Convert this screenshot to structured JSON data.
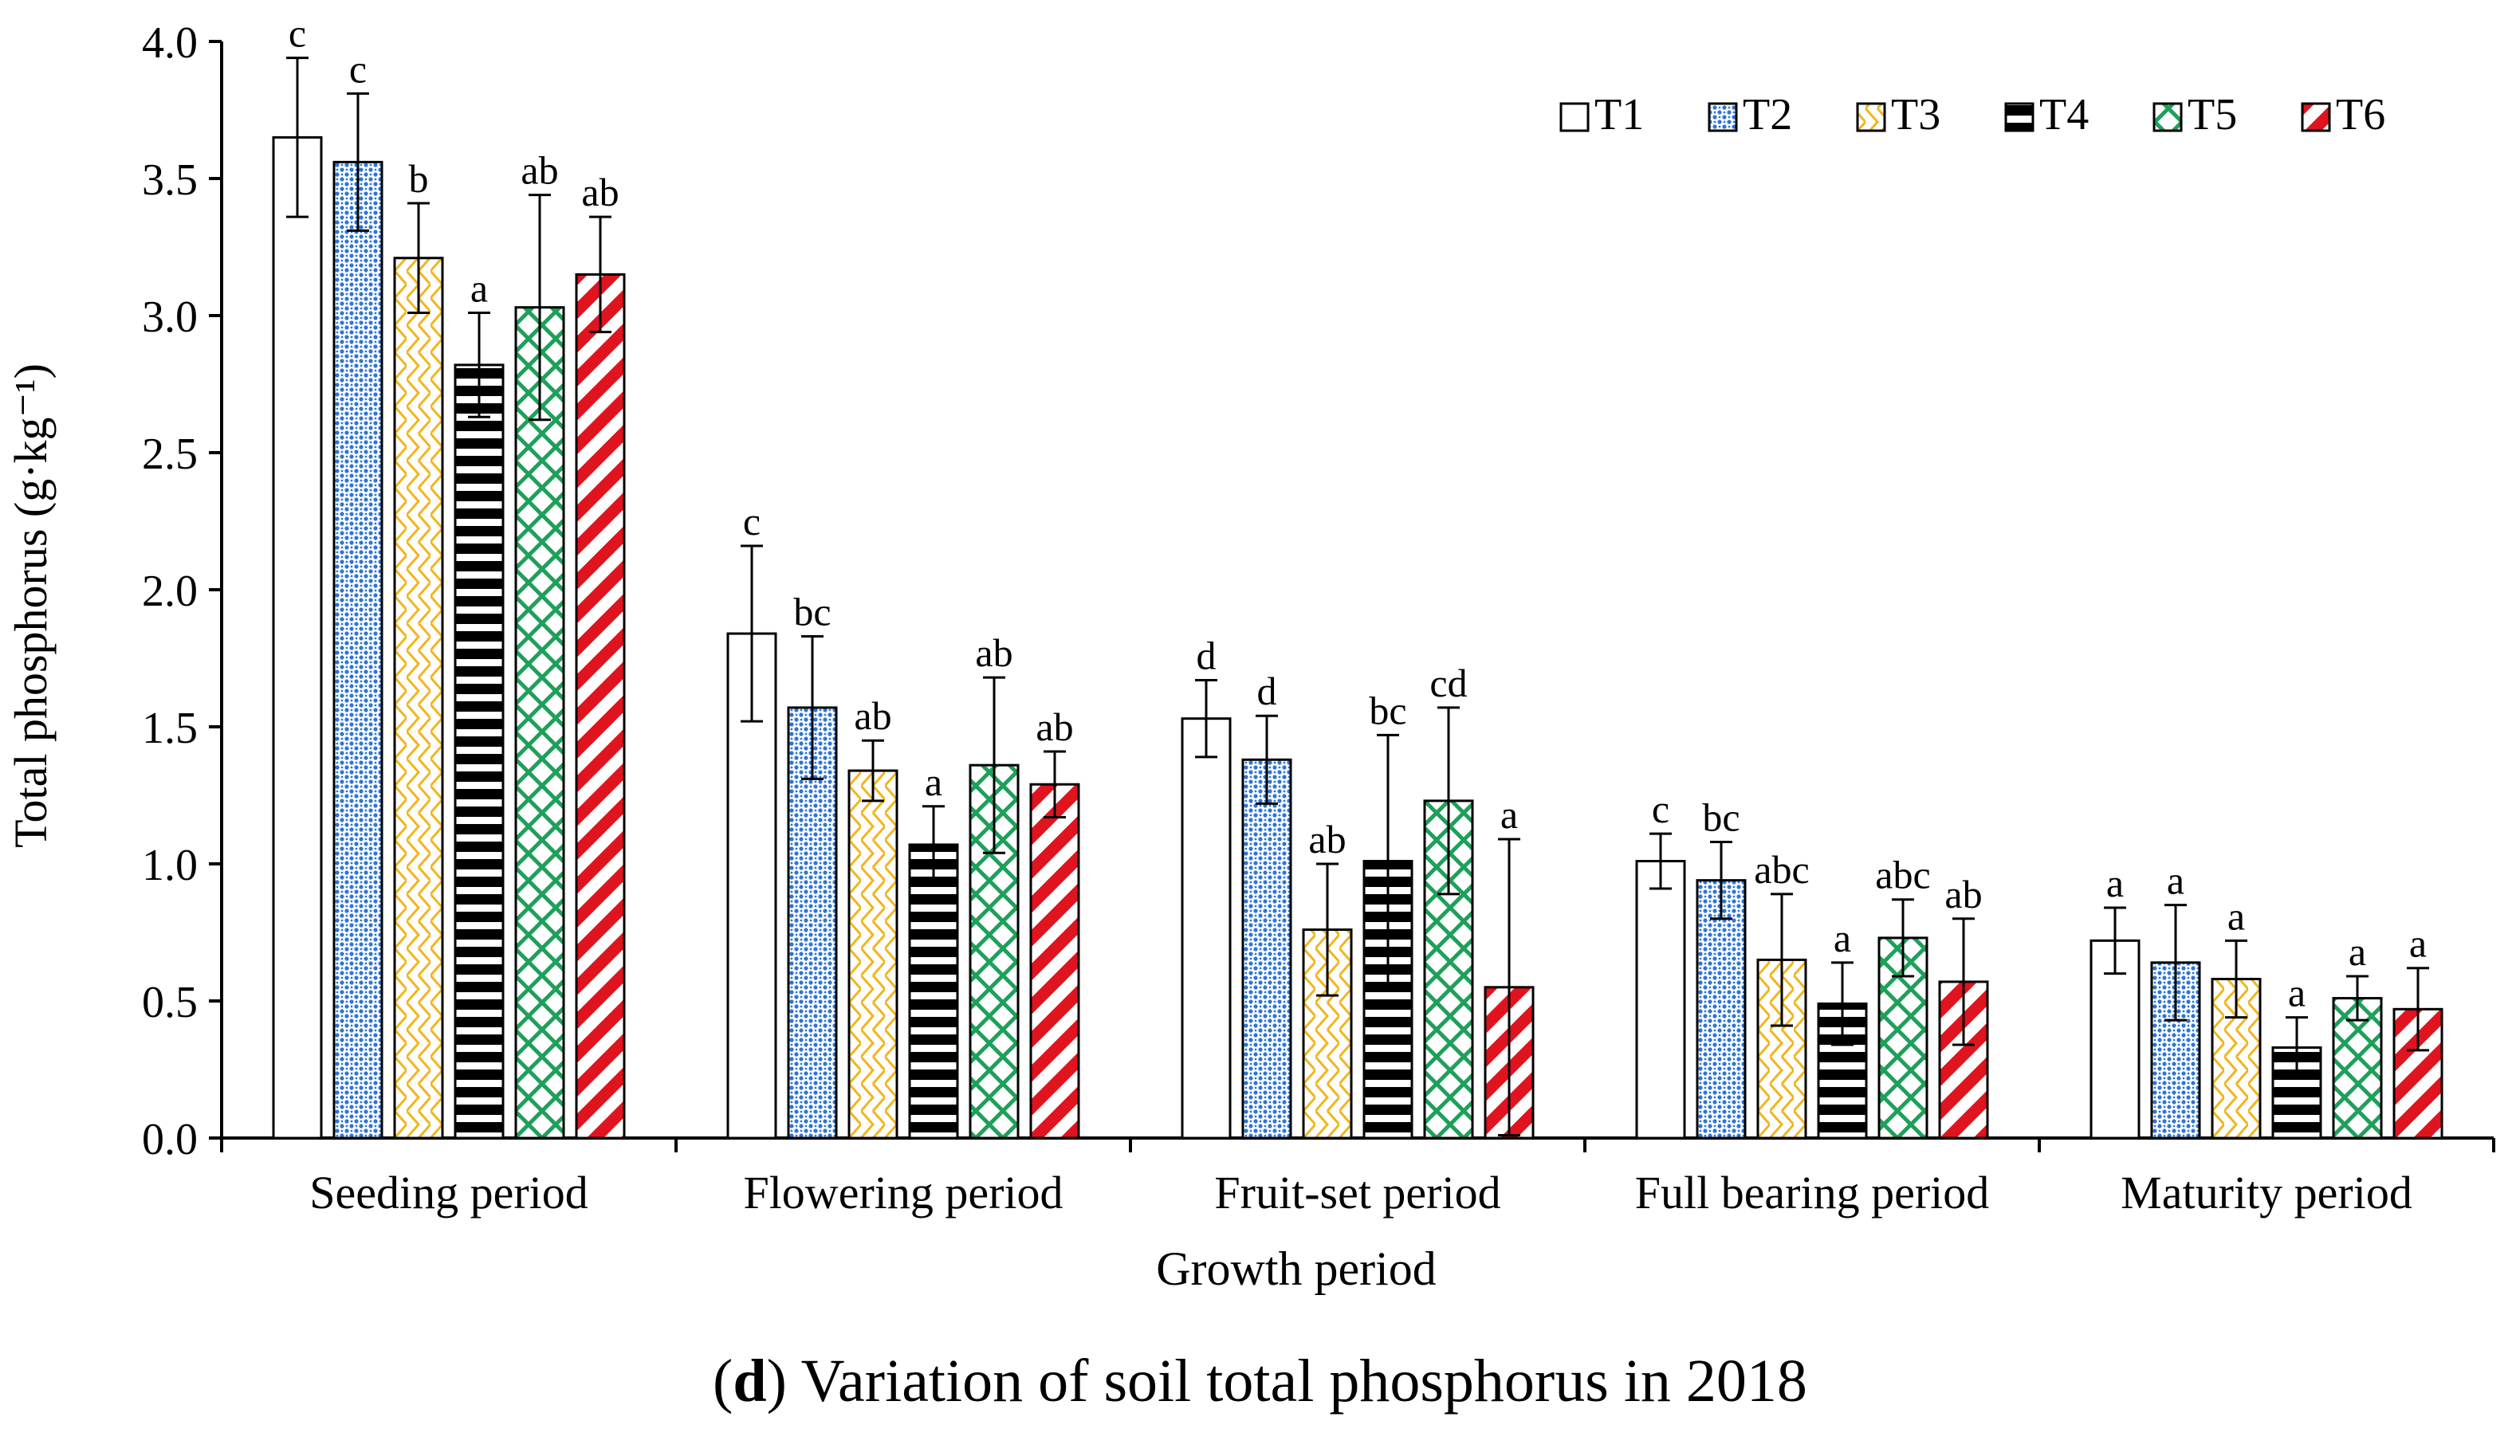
{
  "chart_data": {
    "type": "bar",
    "title": "",
    "xlabel": "Growth period",
    "ylabel": "Total phosphorus (g·kg⁻¹)",
    "ylim": [
      0,
      4.0
    ],
    "y_ticks": [
      "0.0",
      "0.5",
      "1.0",
      "1.5",
      "2.0",
      "2.5",
      "3.0",
      "3.5",
      "4.0"
    ],
    "categories": [
      "Seeding period",
      "Flowering period",
      "Fruit-set period",
      "Full bearing period",
      "Maturity period"
    ],
    "legend_position": "top-right",
    "series": [
      {
        "name": "T1",
        "color": "#ffffff",
        "pattern": "none",
        "values": [
          3.65,
          1.84,
          1.53,
          1.01,
          0.72
        ],
        "errors": [
          0.29,
          0.32,
          0.14,
          0.1,
          0.12
        ],
        "letters": [
          "c",
          "c",
          "d",
          "c",
          "a"
        ]
      },
      {
        "name": "T2",
        "color": "#2e75d6",
        "pattern": "dots",
        "values": [
          3.56,
          1.57,
          1.38,
          0.94,
          0.64
        ],
        "errors": [
          0.25,
          0.26,
          0.16,
          0.14,
          0.21
        ],
        "letters": [
          "c",
          "bc",
          "d",
          "bc",
          "a"
        ]
      },
      {
        "name": "T3",
        "color": "#f2b51c",
        "pattern": "zigzag",
        "values": [
          3.21,
          1.34,
          0.76,
          0.65,
          0.58
        ],
        "errors": [
          0.2,
          0.11,
          0.24,
          0.24,
          0.14
        ],
        "letters": [
          "b",
          "ab",
          "ab",
          "abc",
          "a"
        ]
      },
      {
        "name": "T4",
        "color": "#000000",
        "pattern": "horizontal",
        "values": [
          2.82,
          1.07,
          1.01,
          0.49,
          0.33
        ],
        "errors": [
          0.19,
          0.14,
          0.46,
          0.15,
          0.11
        ],
        "letters": [
          "a",
          "a",
          "bc",
          "a",
          "a"
        ]
      },
      {
        "name": "T5",
        "color": "#1ea05a",
        "pattern": "diamond",
        "values": [
          3.03,
          1.36,
          1.23,
          0.73,
          0.51
        ],
        "errors": [
          0.41,
          0.32,
          0.34,
          0.14,
          0.08
        ],
        "letters": [
          "ab",
          "ab",
          "cd",
          "abc",
          "a"
        ]
      },
      {
        "name": "T6",
        "color": "#e0141e",
        "pattern": "diagonal",
        "values": [
          3.15,
          1.29,
          0.55,
          0.57,
          0.47
        ],
        "errors": [
          0.21,
          0.12,
          0.54,
          0.23,
          0.15
        ],
        "letters": [
          "ab",
          "ab",
          "a",
          "ab",
          "a"
        ]
      }
    ]
  },
  "caption": {
    "label": "d",
    "text": "Variation of soil total phosphorus in 2018"
  }
}
